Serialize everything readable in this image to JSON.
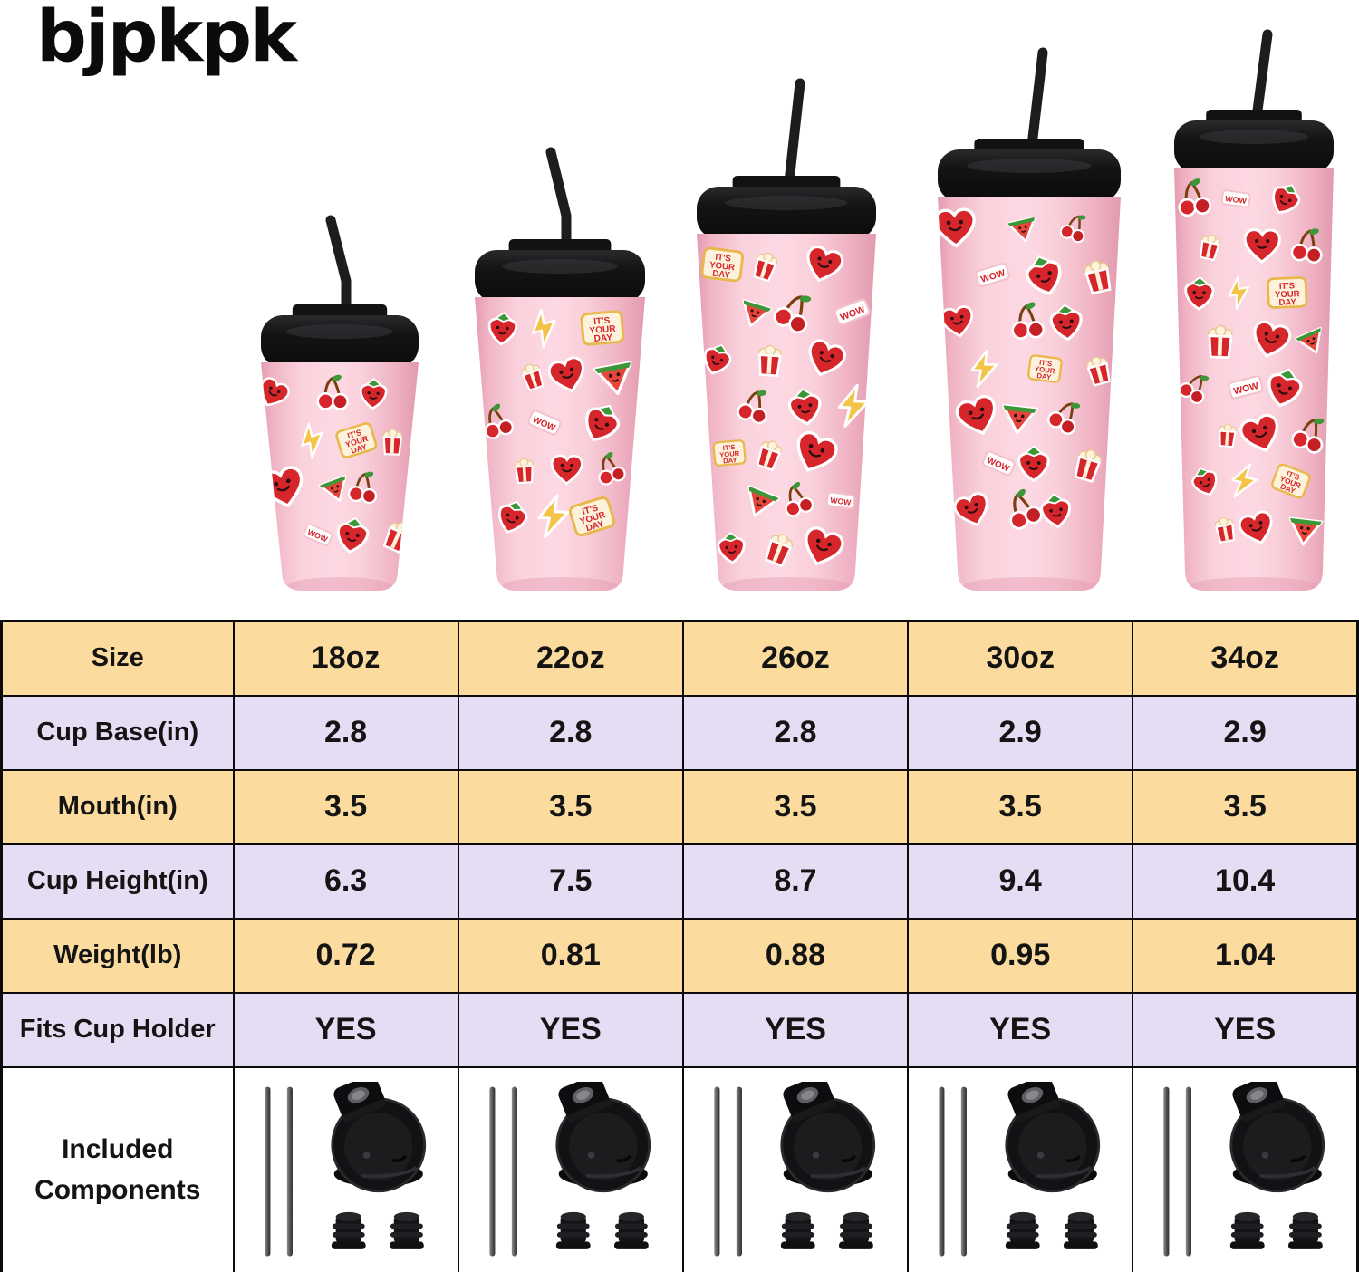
{
  "brand": {
    "logo_text": "bJPKPK"
  },
  "tumblers": {
    "items": [
      {
        "size": "18oz"
      },
      {
        "size": "22oz"
      },
      {
        "size": "26oz"
      },
      {
        "size": "30oz"
      },
      {
        "size": "34oz"
      }
    ],
    "sticker_badge_lines": [
      "IT'S",
      "YOUR",
      "DAY"
    ],
    "sticker_wow_text": "WOW",
    "colors": {
      "cup_pink": "#f7c6d3",
      "cup_pink_light": "#fdd9e3",
      "cup_pink_edge": "#e49cb0",
      "lid_black": "#141416",
      "straw_black": "#1d1d1f",
      "sticker_red": "#d6252b",
      "leaf_green": "#3d9638",
      "bolt_yellow": "#f4c449"
    }
  },
  "table": {
    "rows": [
      {
        "label": "Size",
        "values": [
          "18oz",
          "22oz",
          "26oz",
          "30oz",
          "34oz"
        ]
      },
      {
        "label": "Cup Base(in)",
        "values": [
          "2.8",
          "2.8",
          "2.8",
          "2.9",
          "2.9"
        ]
      },
      {
        "label": "Mouth(in)",
        "values": [
          "3.5",
          "3.5",
          "3.5",
          "3.5",
          "3.5"
        ]
      },
      {
        "label": "Cup Height(in)",
        "values": [
          "6.3",
          "7.5",
          "8.7",
          "9.4",
          "10.4"
        ]
      },
      {
        "label": "Weight(lb)",
        "values": [
          "0.72",
          "0.81",
          "0.88",
          "0.95",
          "1.04"
        ]
      },
      {
        "label": "Fits Cup Holder",
        "values": [
          "YES",
          "YES",
          "YES",
          "YES",
          "YES"
        ]
      }
    ],
    "components_row": {
      "label": "Included Components",
      "icons": [
        "metal-straws-icon",
        "flip-lid-icon",
        "straw-stoppers-icon"
      ]
    },
    "style": {
      "row_color_odd": "#fbdb9e",
      "row_color_even": "#e6ddf5",
      "border_color": "#0b0b0b",
      "text_color": "#141414"
    }
  }
}
